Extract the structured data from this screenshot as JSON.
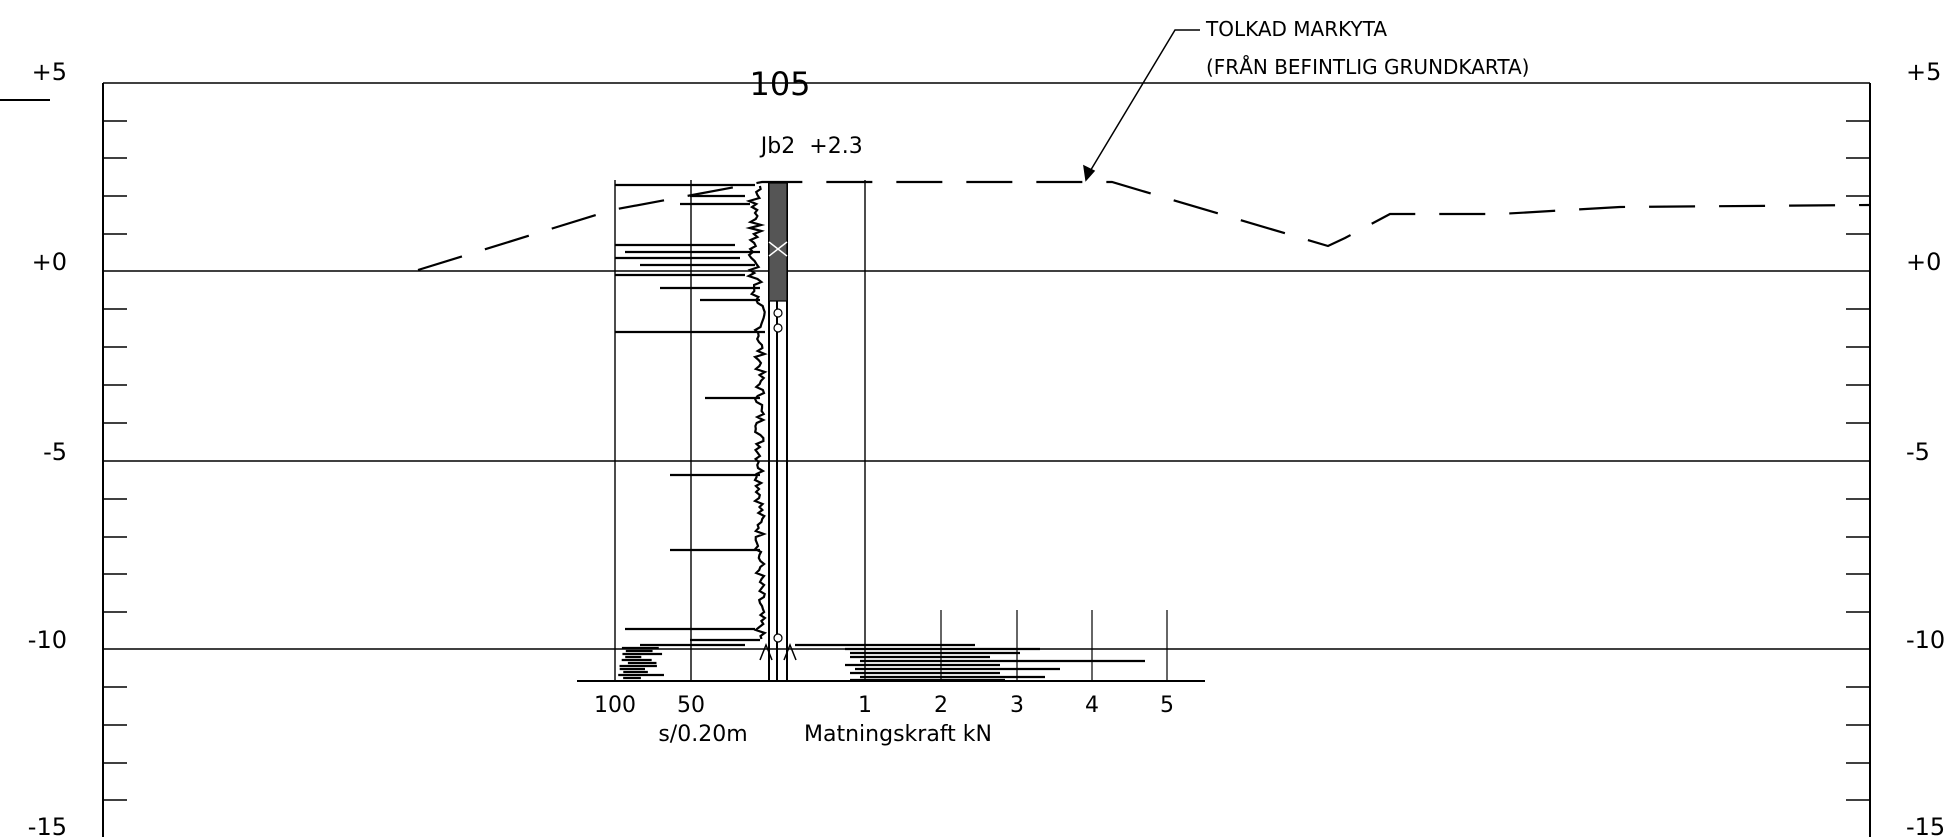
{
  "elevation_axis": {
    "left_labels": [
      "+5",
      "+0",
      "-5",
      "-10",
      "-15"
    ],
    "right_labels": [
      "+5",
      "+0",
      "-5",
      "-10",
      "-15"
    ],
    "values": [
      5,
      0,
      -5,
      -10,
      -15
    ]
  },
  "section": {
    "station": "105",
    "borehole_id": "Jb2",
    "borehole_level": "+2.3"
  },
  "annotation": {
    "line1": "TOLKAD MARKYTA",
    "line2": "(FRÅN BEFINTLIG GRUNDKARTA)"
  },
  "resistance_scale": {
    "ticks": [
      "100",
      "50"
    ],
    "label": "s/0.20m"
  },
  "force_scale": {
    "ticks": [
      "1",
      "2",
      "3",
      "4",
      "5"
    ],
    "label": "Matningskraft kN"
  },
  "colors": {
    "ink": "#000000",
    "paper": "#ffffff"
  }
}
